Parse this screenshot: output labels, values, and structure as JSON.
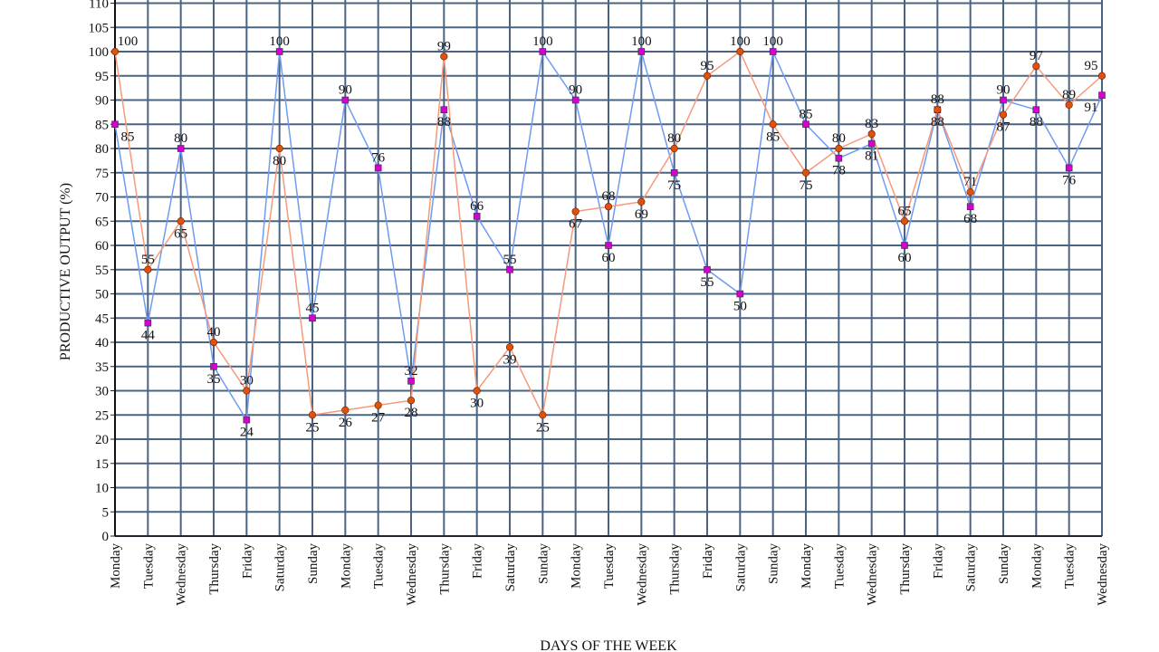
{
  "chart_data": {
    "type": "line",
    "title": "",
    "xlabel": "DAYS OF THE WEEK",
    "ylabel": "PRODUCTIVE OUTPUT (%)",
    "ylim": [
      0,
      110
    ],
    "ytick_step": 5,
    "grid": true,
    "legend": "none",
    "categories": [
      "Monday",
      "Tuesday",
      "Wednesday",
      "Thursday",
      "Friday",
      "Saturday",
      "Sunday",
      "Monday",
      "Tuesday",
      "Wednesday",
      "Thursday",
      "Friday",
      "Saturday",
      "Sunday",
      "Monday",
      "Tuesday",
      "Wednesday",
      "Thursday",
      "Friday",
      "Saturday",
      "Sunday",
      "Monday",
      "Tuesday",
      "Wednesday",
      "Thursday",
      "Friday",
      "Saturday",
      "Sunday",
      "Monday",
      "Tuesday",
      "Wednesday"
    ],
    "series": [
      {
        "color": "#6f9cf0",
        "marker": "square",
        "marker_color": "#d400d4",
        "values": [
          85,
          44,
          80,
          35,
          24,
          100,
          45,
          90,
          76,
          32,
          88,
          66,
          55,
          100,
          90,
          60,
          100,
          75,
          55,
          50,
          100,
          85,
          78,
          81,
          60,
          88,
          68,
          90,
          88,
          76,
          91
        ]
      },
      {
        "color": "#f59a7a",
        "marker": "circle",
        "marker_color": "#e0520a",
        "values": [
          100,
          55,
          65,
          40,
          30,
          80,
          25,
          26,
          27,
          28,
          99,
          30,
          39,
          25,
          67,
          68,
          69,
          80,
          95,
          100,
          85,
          75,
          80,
          83,
          65,
          88,
          71,
          87,
          97,
          89,
          95
        ]
      }
    ]
  }
}
